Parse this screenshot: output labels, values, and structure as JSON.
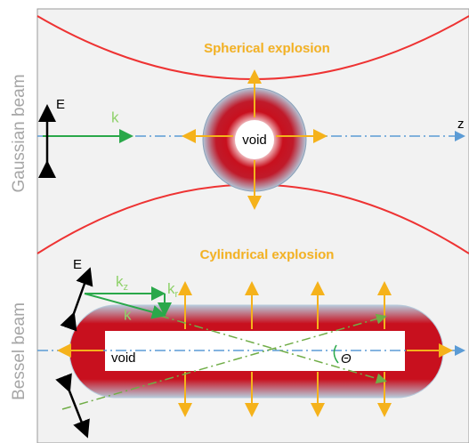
{
  "side_labels": {
    "top": "Gaussian beam",
    "bottom": "Bessel beam"
  },
  "gaussian": {
    "title": "Spherical explosion",
    "void": "void",
    "E": "E",
    "k": "k",
    "z": "z"
  },
  "bessel": {
    "title": "Cylindrical explosion",
    "void": "void",
    "E": "E",
    "k": "k",
    "kz": "k",
    "kz_sub": "z",
    "kr": "k",
    "kr_sub": "r",
    "theta": "Θ"
  }
}
